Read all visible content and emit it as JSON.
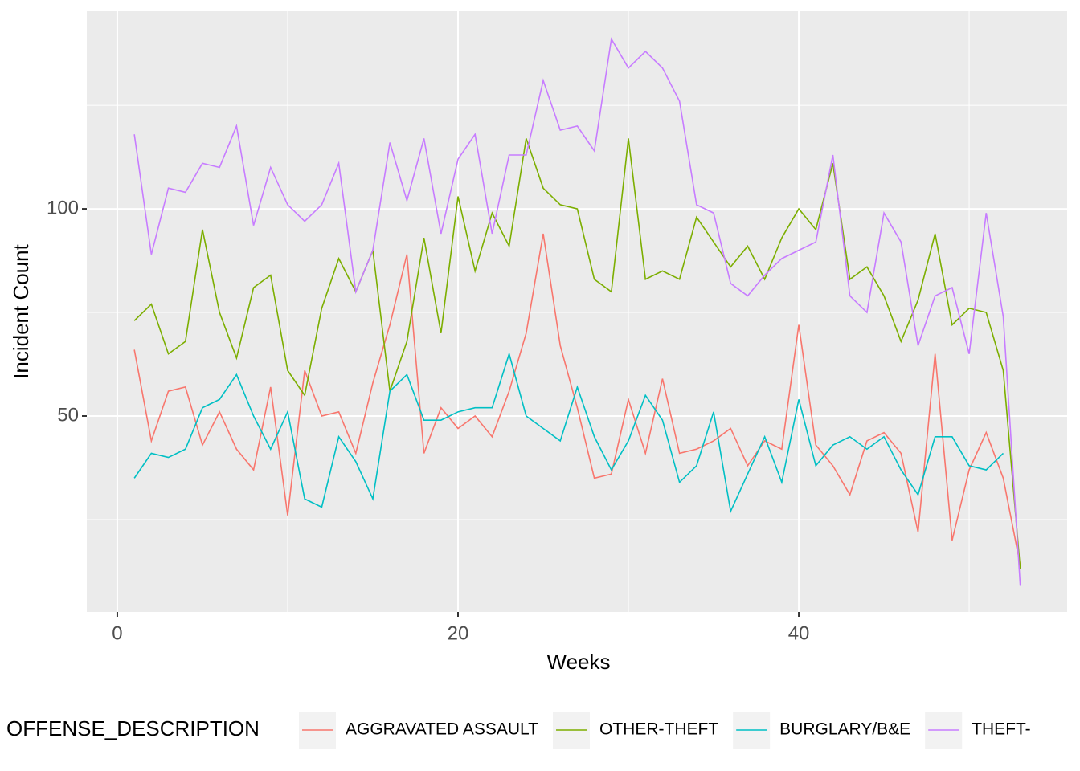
{
  "chart_data": {
    "type": "line",
    "x_label": "Weeks",
    "y_label": "Incident Count",
    "legend_title": "OFFENSE_DESCRIPTION",
    "legend": "bottom",
    "x": [
      1,
      2,
      3,
      4,
      5,
      6,
      7,
      8,
      9,
      10,
      11,
      12,
      13,
      14,
      15,
      16,
      17,
      18,
      19,
      20,
      21,
      22,
      23,
      24,
      25,
      26,
      27,
      28,
      29,
      30,
      31,
      32,
      33,
      34,
      35,
      36,
      37,
      38,
      39,
      40,
      41,
      42,
      43,
      44,
      45,
      46,
      47,
      48,
      49,
      50,
      51,
      52,
      53
    ],
    "xlim": [
      -1.79,
      55.75
    ],
    "xticks": [
      0,
      20,
      40
    ],
    "xminor": [
      10,
      30,
      50
    ],
    "ylim": [
      2.7,
      147.7
    ],
    "yticks": [
      50,
      100
    ],
    "yminor": [
      25,
      75,
      125
    ],
    "grid": true,
    "series": [
      {
        "name": "AGGRAVATED ASSAULT",
        "color": "#F8766D",
        "values": [
          66,
          44,
          56,
          57,
          43,
          51,
          42,
          37,
          57,
          26,
          61,
          50,
          51,
          41,
          58,
          72,
          89,
          41,
          52,
          47,
          50,
          45,
          56,
          70,
          94,
          67,
          52,
          35,
          36,
          54,
          41,
          59,
          41,
          42,
          44,
          47,
          38,
          44,
          42,
          72,
          43,
          38,
          31,
          44,
          46,
          41,
          22,
          65,
          20,
          37,
          46,
          35,
          14
        ]
      },
      {
        "name": "OTHER-THEFT",
        "color": "#7CAE00",
        "values": [
          73,
          77,
          65,
          68,
          95,
          75,
          64,
          81,
          84,
          61,
          55,
          76,
          88,
          80,
          90,
          56,
          68,
          93,
          70,
          103,
          85,
          99,
          91,
          117,
          105,
          101,
          100,
          83,
          80,
          117,
          83,
          85,
          83,
          98,
          92,
          86,
          91,
          83,
          93,
          100,
          95,
          111,
          83,
          86,
          79,
          68,
          78,
          94,
          72,
          76,
          75,
          61,
          13
        ]
      },
      {
        "name": "BURGLARY/B&E",
        "color": "#00BFC4",
        "values": [
          35,
          41,
          40,
          42,
          52,
          54,
          60,
          50,
          42,
          51,
          30,
          28,
          45,
          39,
          30,
          56,
          60,
          49,
          49,
          51,
          52,
          52,
          65,
          50,
          47,
          44,
          57,
          45,
          37,
          44,
          55,
          49,
          34,
          38,
          51,
          27,
          36,
          45,
          34,
          54,
          38,
          43,
          45,
          42,
          45,
          37,
          31,
          45,
          45,
          38,
          37,
          41,
          null
        ]
      },
      {
        "name": "THEFT-",
        "color": "#C77CFF",
        "values": [
          118,
          89,
          105,
          104,
          111,
          110,
          120,
          96,
          110,
          101,
          97,
          101,
          111,
          80,
          90,
          116,
          102,
          117,
          94,
          112,
          118,
          94,
          113,
          113,
          131,
          119,
          120,
          114,
          141,
          134,
          138,
          134,
          126,
          101,
          99,
          82,
          79,
          84,
          88,
          90,
          92,
          113,
          79,
          75,
          99,
          92,
          67,
          79,
          81,
          65,
          99,
          74,
          9
        ]
      }
    ]
  }
}
